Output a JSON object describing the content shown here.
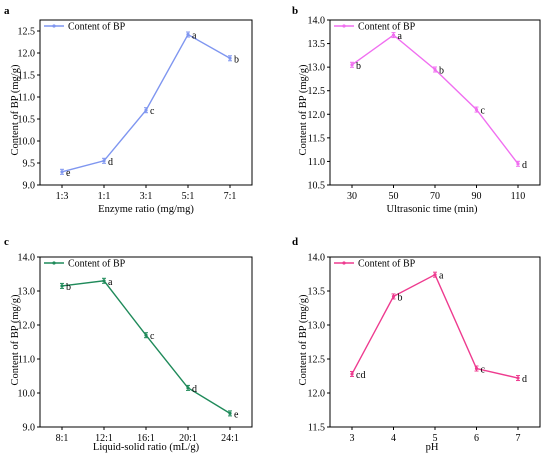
{
  "chart_data": [
    {
      "type": "line",
      "panel": "a",
      "legend": "Content of BP",
      "xlabel": "Enzyme ratio (mg/mg)",
      "ylabel": "Content of BP (mg/g)",
      "categories": [
        "1:3",
        "1:1",
        "3:1",
        "5:1",
        "7:1"
      ],
      "values": [
        9.3,
        9.55,
        10.7,
        12.42,
        11.88
      ],
      "annotations": [
        "e",
        "d",
        "c",
        "a",
        "b"
      ],
      "ylim": [
        9.0,
        12.75
      ],
      "yticks": [
        9.0,
        9.5,
        10.0,
        10.5,
        11.0,
        11.5,
        12.0,
        12.5
      ],
      "ytick_labels": [
        "9.0",
        "9.5",
        "10.0",
        "10.5",
        "11.0",
        "11.5",
        "12.0",
        "12.5"
      ],
      "color": "#7f96f0",
      "legend_position": "top-left"
    },
    {
      "type": "line",
      "panel": "b",
      "legend": "Content of BP",
      "xlabel": "Ultrasonic time (min)",
      "ylabel": "Content of BP (mg/g)",
      "categories": [
        "30",
        "50",
        "70",
        "90",
        "110"
      ],
      "values": [
        13.05,
        13.68,
        12.95,
        12.1,
        10.95
      ],
      "annotations": [
        "b",
        "a",
        "b",
        "c",
        "d"
      ],
      "ylim": [
        10.5,
        14.0
      ],
      "yticks": [
        10.5,
        11.0,
        11.5,
        12.0,
        12.5,
        13.0,
        13.5,
        14.0
      ],
      "ytick_labels": [
        "10.5",
        "11.0",
        "11.5",
        "12.0",
        "12.5",
        "13.0",
        "13.5",
        "14.0"
      ],
      "color": "#f06ef0",
      "legend_position": "top-left"
    },
    {
      "type": "line",
      "panel": "c",
      "legend": "Content of BP",
      "xlabel": "Liquid-solid ratio (mL/g)",
      "ylabel": "Content of BP (mg/g)",
      "categories": [
        "8:1",
        "12:1",
        "16:1",
        "20:1",
        "24:1"
      ],
      "values": [
        13.15,
        13.3,
        11.7,
        10.15,
        9.4
      ],
      "annotations": [
        "b",
        "a",
        "c",
        "d",
        "e"
      ],
      "ylim": [
        9.0,
        14.0
      ],
      "yticks": [
        9.0,
        10.0,
        11.0,
        12.0,
        13.0,
        14.0
      ],
      "ytick_labels": [
        "9.0",
        "10.0",
        "11.0",
        "12.0",
        "13.0",
        "14.0"
      ],
      "color": "#1f8a5a",
      "legend_position": "top-left"
    },
    {
      "type": "line",
      "panel": "d",
      "legend": "Content of BP",
      "xlabel": "pH",
      "ylabel": "Content of BP (mg/g)",
      "categories": [
        "3",
        "4",
        "5",
        "6",
        "7"
      ],
      "values": [
        12.28,
        13.42,
        13.74,
        12.36,
        12.22
      ],
      "annotations": [
        "cd",
        "b",
        "a",
        "c",
        "d"
      ],
      "ylim": [
        11.5,
        14.0
      ],
      "yticks": [
        11.5,
        12.0,
        12.5,
        13.0,
        13.5,
        14.0
      ],
      "ytick_labels": [
        "11.5",
        "12.0",
        "12.5",
        "13.0",
        "13.5",
        "14.0"
      ],
      "color": "#ee3b8f",
      "legend_position": "top-left"
    }
  ]
}
